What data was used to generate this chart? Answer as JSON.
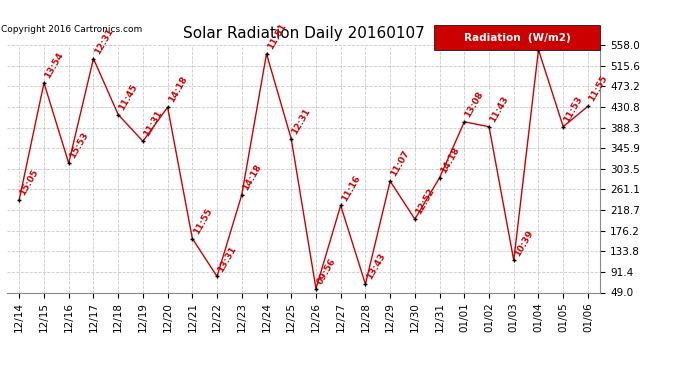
{
  "title": "Solar Radiation Daily 20160107",
  "copyright": "Copyright 2016 Cartronics.com",
  "legend_label": "Radiation  (W/m2)",
  "x_labels": [
    "12/14",
    "12/15",
    "12/16",
    "12/17",
    "12/18",
    "12/19",
    "12/20",
    "12/21",
    "12/22",
    "12/23",
    "12/24",
    "12/25",
    "12/26",
    "12/27",
    "12/28",
    "12/29",
    "12/30",
    "12/31",
    "01/01",
    "01/02",
    "01/03",
    "01/04",
    "01/05",
    "01/06"
  ],
  "y_values": [
    240,
    480,
    315,
    530,
    415,
    360,
    430,
    160,
    82,
    250,
    540,
    365,
    57,
    228,
    66,
    278,
    200,
    285,
    400,
    390,
    115,
    548,
    390,
    432
  ],
  "point_labels": [
    "15:05",
    "13:54",
    "15:53",
    "12:31",
    "11:45",
    "11:31",
    "14:18",
    "11:55",
    "13:31",
    "14:18",
    "11:51",
    "12:31",
    "09:56",
    "11:16",
    "13:43",
    "11:07",
    "12:52",
    "14:18",
    "13:08",
    "11:43",
    "10:39",
    "",
    "11:53",
    "11:55"
  ],
  "y_min": 49.0,
  "y_max": 558.0,
  "y_ticks": [
    49.0,
    91.4,
    133.8,
    176.2,
    218.7,
    261.1,
    303.5,
    345.9,
    388.3,
    430.8,
    473.2,
    515.6,
    558.0
  ],
  "line_color": "#cc0000",
  "marker_color": "#000000",
  "bg_color": "#ffffff",
  "grid_color": "#bbbbbb",
  "legend_bg": "#cc0000",
  "legend_text_color": "#ffffff",
  "title_fontsize": 11,
  "label_fontsize": 6.5,
  "tick_fontsize": 7.5,
  "copyright_fontsize": 6.5
}
